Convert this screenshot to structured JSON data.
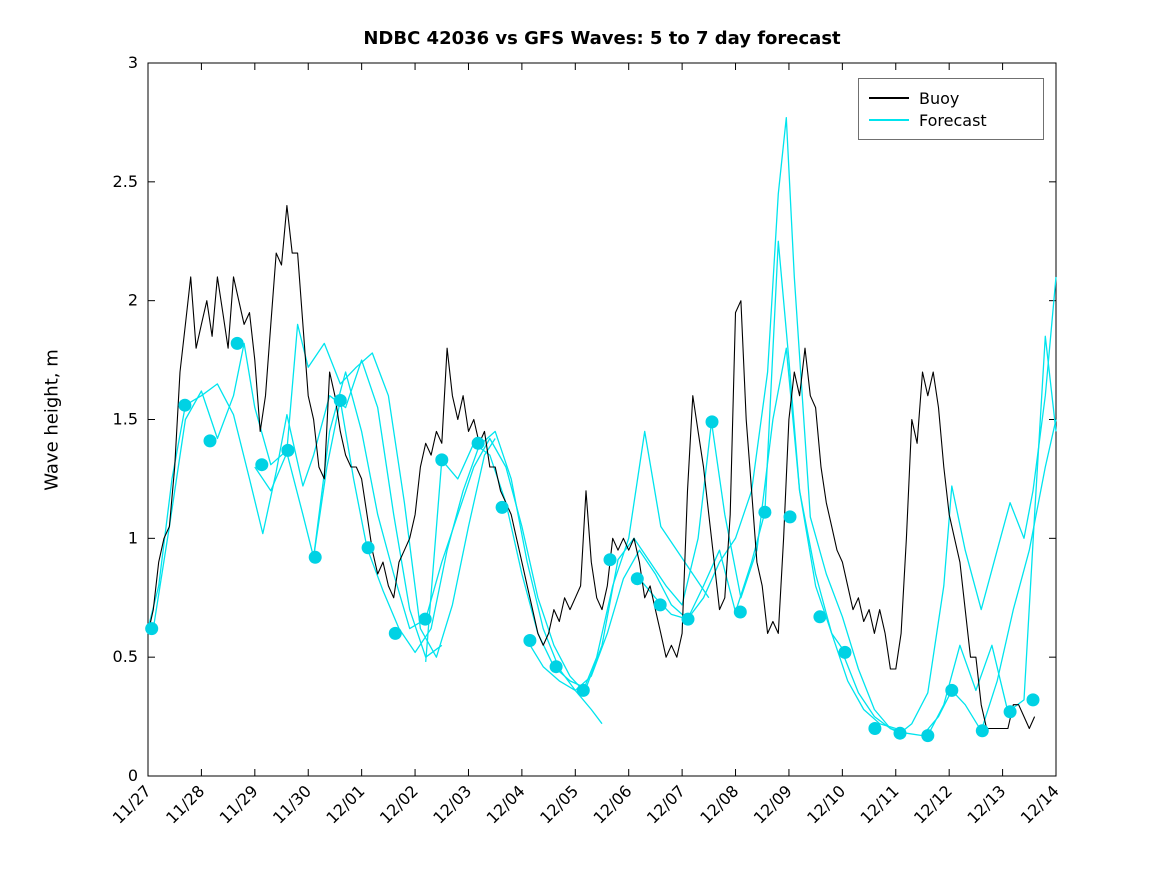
{
  "chart_data": {
    "type": "line",
    "title": "NDBC 42036 vs GFS Waves: 5 to 7 day forecast",
    "xlabel": "",
    "ylabel": "Wave height, m",
    "xlim": [
      0,
      17
    ],
    "ylim": [
      0,
      3
    ],
    "grid": false,
    "xticks": [
      0,
      1,
      2,
      3,
      4,
      5,
      6,
      7,
      8,
      9,
      10,
      11,
      12,
      13,
      14,
      15,
      16,
      17
    ],
    "xtick_labels": [
      "11/27",
      "11/28",
      "11/29",
      "11/30",
      "12/01",
      "12/02",
      "12/03",
      "12/04",
      "12/05",
      "12/06",
      "12/07",
      "12/08",
      "12/09",
      "12/10",
      "12/11",
      "12/12",
      "12/13",
      "12/14"
    ],
    "yticks": [
      0,
      0.5,
      1,
      1.5,
      2,
      2.5,
      3
    ],
    "ytick_labels": [
      "0",
      "0.5",
      "1",
      "1.5",
      "2",
      "2.5",
      "3"
    ],
    "colors": {
      "buoy": "#000000",
      "forecast": "#00e4ee",
      "marker": "#00d2e4",
      "axis": "#000000",
      "background": "#ffffff"
    },
    "legend": {
      "position": "top-right",
      "entries": [
        {
          "label": "Buoy",
          "color": "#000000"
        },
        {
          "label": "Forecast",
          "color": "#00e4ee"
        }
      ]
    },
    "series": {
      "buoy": {
        "name": "Buoy",
        "x0": 0,
        "dx": 0.1,
        "values": [
          0.6,
          0.7,
          0.9,
          1.0,
          1.05,
          1.3,
          1.7,
          1.9,
          2.1,
          1.8,
          1.9,
          2.0,
          1.85,
          2.1,
          1.95,
          1.8,
          2.1,
          2.0,
          1.9,
          1.95,
          1.75,
          1.45,
          1.6,
          1.9,
          2.2,
          2.15,
          2.4,
          2.2,
          2.2,
          1.9,
          1.6,
          1.5,
          1.3,
          1.25,
          1.7,
          1.6,
          1.45,
          1.35,
          1.3,
          1.3,
          1.25,
          1.1,
          0.95,
          0.85,
          0.9,
          0.8,
          0.75,
          0.9,
          0.95,
          1.0,
          1.1,
          1.3,
          1.4,
          1.35,
          1.45,
          1.4,
          1.8,
          1.6,
          1.5,
          1.6,
          1.45,
          1.5,
          1.4,
          1.45,
          1.3,
          1.3,
          1.2,
          1.15,
          1.1,
          1.0,
          0.9,
          0.8,
          0.7,
          0.6,
          0.55,
          0.6,
          0.7,
          0.65,
          0.75,
          0.7,
          0.75,
          0.8,
          1.2,
          0.9,
          0.75,
          0.7,
          0.8,
          1.0,
          0.95,
          1.0,
          0.95,
          1.0,
          0.9,
          0.75,
          0.8,
          0.7,
          0.6,
          0.5,
          0.55,
          0.5,
          0.6,
          1.2,
          1.6,
          1.45,
          1.3,
          1.1,
          0.9,
          0.7,
          0.75,
          1.1,
          1.95,
          2.0,
          1.5,
          1.2,
          0.9,
          0.8,
          0.6,
          0.65,
          0.6,
          1.0,
          1.5,
          1.7,
          1.6,
          1.8,
          1.6,
          1.55,
          1.3,
          1.15,
          1.05,
          0.95,
          0.9,
          0.8,
          0.7,
          0.75,
          0.65,
          0.7,
          0.6,
          0.7,
          0.6,
          0.45,
          0.45,
          0.6,
          1.0,
          1.5,
          1.4,
          1.7,
          1.6,
          1.7,
          1.55,
          1.3,
          1.1,
          1.0,
          0.9,
          0.7,
          0.5,
          0.5,
          0.3,
          0.2,
          0.2,
          0.2,
          0.2,
          0.2,
          0.3,
          0.3,
          0.25,
          0.2,
          0.25
        ]
      },
      "forecasts": [
        {
          "x": [
            0,
            0.2,
            0.45,
            0.7,
            1.0,
            1.3,
            1.6,
            1.9,
            2.15,
            2.4,
            2.6,
            2.9,
            3.1,
            3.4,
            3.7,
            4.0,
            4.3,
            4.6,
            4.9,
            5.2,
            5.5
          ],
          "y": [
            0.62,
            0.8,
            1.25,
            1.56,
            1.6,
            1.65,
            1.52,
            1.25,
            1.02,
            1.28,
            1.52,
            1.22,
            1.35,
            1.6,
            1.55,
            1.75,
            1.55,
            1.1,
            0.7,
            0.5,
            0.55
          ]
        },
        {
          "x": [
            0.1,
            0.4,
            0.7,
            1.0,
            1.3,
            1.6,
            1.8,
            2.0,
            2.3,
            2.6,
            2.8,
            3.0,
            3.3,
            3.6,
            3.9,
            4.2,
            4.5,
            4.8,
            5.1,
            5.4,
            5.7,
            6.0,
            6.3,
            6.5
          ],
          "y": [
            0.62,
            1.05,
            1.5,
            1.62,
            1.42,
            1.6,
            1.82,
            1.55,
            1.31,
            1.37,
            1.9,
            1.72,
            1.82,
            1.65,
            1.72,
            1.78,
            1.6,
            1.15,
            0.62,
            0.5,
            0.72,
            1.05,
            1.35,
            1.42
          ]
        },
        {
          "x": [
            2.0,
            2.3,
            2.6,
            2.9,
            3.1,
            3.35,
            3.6,
            3.85,
            4.1,
            4.4,
            4.7,
            5.0,
            5.3,
            5.6,
            5.9,
            6.2,
            6.5,
            6.8,
            7.1,
            7.4,
            7.7,
            8.0,
            8.3,
            8.5
          ],
          "y": [
            1.3,
            1.2,
            1.36,
            1.1,
            0.92,
            1.3,
            1.58,
            1.25,
            0.96,
            0.78,
            0.62,
            0.52,
            0.62,
            0.95,
            1.2,
            1.39,
            1.45,
            1.25,
            0.9,
            0.62,
            0.45,
            0.36,
            0.28,
            0.22
          ]
        },
        {
          "x": [
            3.1,
            3.4,
            3.7,
            4.0,
            4.3,
            4.6,
            4.9,
            5.2,
            5.5,
            5.8,
            6.1,
            6.4,
            6.7,
            7.0,
            7.3,
            7.6,
            7.9,
            8.15,
            8.4,
            8.7,
            9.0,
            9.3,
            9.6,
            9.9,
            10.2,
            10.5
          ],
          "y": [
            0.92,
            1.45,
            1.7,
            1.45,
            1.1,
            0.85,
            0.62,
            0.66,
            0.9,
            1.1,
            1.3,
            1.42,
            1.3,
            1.05,
            0.75,
            0.55,
            0.42,
            0.36,
            0.5,
            0.8,
            1.0,
            1.45,
            1.05,
            0.95,
            0.85,
            0.75
          ]
        },
        {
          "x": [
            5.2,
            5.5,
            5.8,
            6.1,
            6.4,
            6.7,
            7.0,
            7.3,
            7.6,
            7.9,
            8.2,
            8.5,
            8.8,
            9.1,
            9.4,
            9.7,
            10.0,
            10.3,
            10.55,
            10.8,
            11.1,
            11.4,
            11.7,
            11.95,
            12.2,
            12.5,
            12.8,
            13.05
          ],
          "y": [
            0.48,
            1.33,
            1.25,
            1.4,
            1.35,
            1.15,
            0.85,
            0.6,
            0.46,
            0.4,
            0.37,
            0.55,
            0.91,
            1.0,
            0.9,
            0.8,
            0.72,
            1.0,
            1.49,
            1.1,
            0.75,
            0.95,
            1.5,
            1.8,
            1.2,
            0.8,
            0.6,
            0.52
          ]
        },
        {
          "x": [
            7.1,
            7.4,
            7.7,
            8.0,
            8.3,
            8.6,
            8.9,
            9.2,
            9.5,
            9.8,
            10.1,
            10.4,
            10.7,
            11.0,
            11.3,
            11.55,
            11.8,
            12.0,
            12.2,
            12.5,
            12.8,
            13.1,
            13.4,
            13.7,
            14.0
          ],
          "y": [
            0.57,
            0.46,
            0.4,
            0.36,
            0.42,
            0.6,
            0.83,
            0.95,
            0.85,
            0.72,
            0.66,
            0.8,
            0.95,
            0.69,
            0.9,
            1.11,
            2.25,
            1.75,
            1.2,
            0.85,
            0.6,
            0.4,
            0.28,
            0.22,
            0.2
          ]
        },
        {
          "x": [
            9.2,
            9.5,
            9.8,
            10.1,
            10.4,
            10.7,
            11.0,
            11.3,
            11.6,
            11.8,
            11.95,
            12.1,
            12.4,
            12.7,
            13.0,
            13.3,
            13.6,
            13.9,
            14.2,
            14.5,
            14.8,
            15.05,
            15.3,
            15.6,
            15.9,
            16.2,
            16.5,
            16.8,
            17.0
          ],
          "y": [
            0.83,
            0.75,
            0.68,
            0.66,
            0.75,
            0.9,
            1.0,
            1.2,
            1.7,
            2.45,
            2.77,
            2.1,
            1.09,
            0.85,
            0.67,
            0.45,
            0.28,
            0.2,
            0.18,
            0.17,
            0.25,
            0.36,
            0.3,
            0.19,
            0.4,
            0.7,
            0.95,
            1.3,
            1.5
          ]
        },
        {
          "x": [
            13.0,
            13.3,
            13.6,
            13.9,
            14.08,
            14.3,
            14.6,
            14.9,
            15.05,
            15.3,
            15.6,
            15.9,
            16.14,
            16.4,
            16.57,
            16.8,
            17.0
          ],
          "y": [
            0.52,
            0.35,
            0.25,
            0.2,
            0.18,
            0.22,
            0.35,
            0.8,
            1.22,
            0.95,
            0.7,
            0.95,
            1.15,
            1.0,
            1.2,
            1.6,
            2.1
          ]
        },
        {
          "x": [
            14.6,
            14.9,
            15.2,
            15.5,
            15.8,
            16.1,
            16.4,
            16.6,
            16.8,
            17.0
          ],
          "y": [
            0.17,
            0.3,
            0.55,
            0.36,
            0.55,
            0.27,
            0.32,
            1.1,
            1.85,
            1.45
          ]
        }
      ],
      "markers": {
        "name": "Forecast verification points",
        "points": [
          [
            0.07,
            0.62
          ],
          [
            0.69,
            1.56
          ],
          [
            1.16,
            1.41
          ],
          [
            1.67,
            1.82
          ],
          [
            2.13,
            1.31
          ],
          [
            2.62,
            1.37
          ],
          [
            3.13,
            0.92
          ],
          [
            3.6,
            1.58
          ],
          [
            4.12,
            0.96
          ],
          [
            4.63,
            0.6
          ],
          [
            5.19,
            0.66
          ],
          [
            5.5,
            1.33
          ],
          [
            6.18,
            1.4
          ],
          [
            6.63,
            1.13
          ],
          [
            7.15,
            0.57
          ],
          [
            7.64,
            0.46
          ],
          [
            8.15,
            0.36
          ],
          [
            8.65,
            0.91
          ],
          [
            9.16,
            0.83
          ],
          [
            9.59,
            0.72
          ],
          [
            10.11,
            0.66
          ],
          [
            10.56,
            1.49
          ],
          [
            11.09,
            0.69
          ],
          [
            11.55,
            1.11
          ],
          [
            12.02,
            1.09
          ],
          [
            12.58,
            0.67
          ],
          [
            13.05,
            0.52
          ],
          [
            13.61,
            0.2
          ],
          [
            14.08,
            0.18
          ],
          [
            14.6,
            0.17
          ],
          [
            15.05,
            0.36
          ],
          [
            15.62,
            0.19
          ],
          [
            16.14,
            0.27
          ],
          [
            16.57,
            0.32
          ]
        ]
      }
    }
  }
}
